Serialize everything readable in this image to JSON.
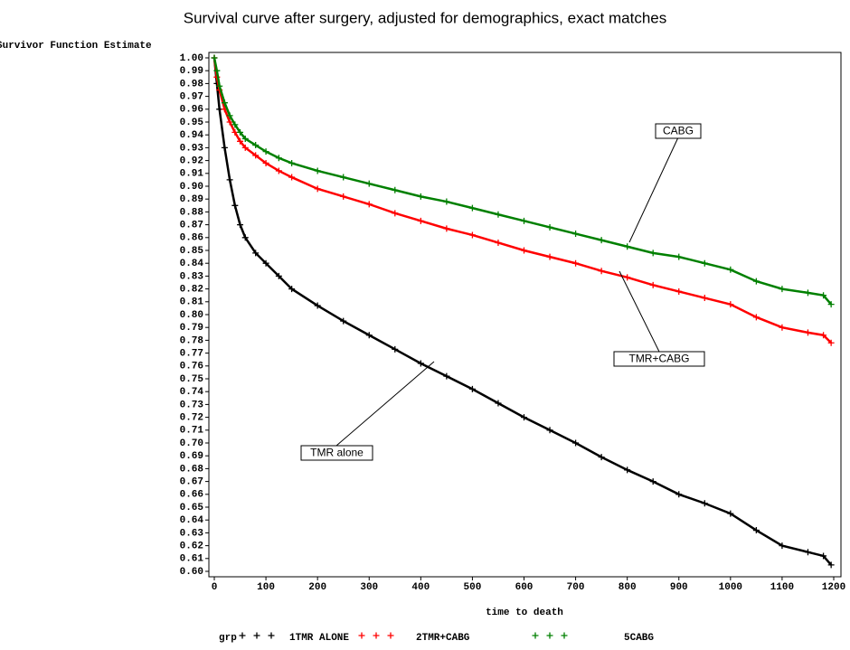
{
  "chart_data": {
    "type": "line",
    "marker": "+",
    "title": "Survival curve after surgery, adjusted for demographics, exact matches",
    "y_label": "Survivor Function Estimate",
    "x_label": "time to death",
    "legend_title": "grp",
    "legend_position": "bottom",
    "x": [
      0,
      5,
      10,
      20,
      30,
      40,
      50,
      60,
      80,
      100,
      125,
      150,
      200,
      250,
      300,
      350,
      400,
      450,
      500,
      550,
      600,
      650,
      700,
      750,
      800,
      850,
      900,
      950,
      1000,
      1050,
      1100,
      1150,
      1180,
      1195
    ],
    "series": [
      {
        "name": "1TMR ALONE",
        "color": "#000000",
        "values": [
          1.0,
          0.98,
          0.96,
          0.93,
          0.905,
          0.885,
          0.87,
          0.86,
          0.848,
          0.84,
          0.83,
          0.82,
          0.807,
          0.795,
          0.784,
          0.773,
          0.762,
          0.752,
          0.742,
          0.731,
          0.72,
          0.71,
          0.7,
          0.689,
          0.679,
          0.67,
          0.66,
          0.653,
          0.645,
          0.632,
          0.62,
          0.615,
          0.612,
          0.605
        ]
      },
      {
        "name": "2TMR+CABG",
        "color": "#ff0000",
        "values": [
          1.0,
          0.985,
          0.975,
          0.96,
          0.95,
          0.942,
          0.935,
          0.93,
          0.924,
          0.918,
          0.912,
          0.907,
          0.898,
          0.892,
          0.886,
          0.879,
          0.873,
          0.867,
          0.862,
          0.856,
          0.85,
          0.845,
          0.84,
          0.834,
          0.829,
          0.823,
          0.818,
          0.813,
          0.808,
          0.798,
          0.79,
          0.786,
          0.784,
          0.778
        ]
      },
      {
        "name": "5CABG",
        "color": "#008000",
        "values": [
          1.0,
          0.99,
          0.978,
          0.965,
          0.955,
          0.948,
          0.942,
          0.937,
          0.932,
          0.927,
          0.922,
          0.918,
          0.912,
          0.907,
          0.902,
          0.897,
          0.892,
          0.888,
          0.883,
          0.878,
          0.873,
          0.868,
          0.863,
          0.858,
          0.853,
          0.848,
          0.845,
          0.84,
          0.835,
          0.826,
          0.82,
          0.817,
          0.815,
          0.808
        ]
      }
    ],
    "annotations": [
      "CABG",
      "TMR+CABG",
      "TMR alone"
    ],
    "xlim": [
      0,
      1200
    ],
    "xticks": [
      0,
      100,
      200,
      300,
      400,
      500,
      600,
      700,
      800,
      900,
      1000,
      1100,
      1200
    ],
    "ylim": [
      0.6,
      1.0
    ],
    "yticks": [
      {
        "value": 0.6,
        "label": "0.60"
      },
      0.61,
      0.62,
      0.63,
      0.64,
      0.65,
      0.66,
      0.67,
      0.68,
      0.69,
      {
        "value": 0.7,
        "label": "0.70"
      },
      0.71,
      0.72,
      0.73,
      0.74,
      0.75,
      0.76,
      0.77,
      0.78,
      0.79,
      {
        "value": 0.8,
        "label": "0.80"
      },
      0.81,
      0.82,
      0.83,
      0.84,
      0.85,
      0.86,
      0.87,
      0.88,
      0.89,
      {
        "value": 0.9,
        "label": "0.90"
      },
      0.91,
      0.92,
      0.93,
      0.94,
      0.95,
      0.96,
      0.97,
      0.98,
      0.99,
      {
        "value": 1.0,
        "label": "1.00"
      }
    ],
    "grid": false
  }
}
